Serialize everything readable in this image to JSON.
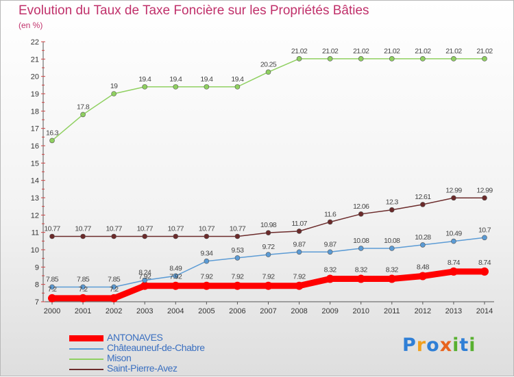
{
  "title": "Evolution du Taux de Taxe Foncière sur les Propriétés Bâties",
  "unit_label": "(en %)",
  "logo": {
    "text": "Proxiti",
    "colors": [
      "#2f7fd6",
      "#f0a020",
      "#2f7fd6",
      "#e8641e",
      "#58b030",
      "#2f7fd6",
      "#58b030"
    ]
  },
  "chart_data": {
    "type": "line",
    "x": [
      2000,
      2001,
      2002,
      2003,
      2004,
      2005,
      2006,
      2007,
      2008,
      2009,
      2010,
      2011,
      2012,
      2013,
      2014
    ],
    "ylim": [
      7,
      22
    ],
    "yticks": [
      7,
      8,
      9,
      10,
      11,
      12,
      13,
      14,
      15,
      16,
      17,
      18,
      19,
      20,
      21,
      22
    ],
    "grid": false,
    "legend_position": "bottom-left",
    "series": [
      {
        "name": "ANTONAVES",
        "color": "#ff0000",
        "thick": true,
        "values": [
          7.2,
          7.2,
          7.2,
          7.92,
          7.92,
          7.92,
          7.92,
          7.92,
          7.92,
          8.32,
          8.32,
          8.32,
          8.48,
          8.74,
          8.74
        ],
        "labels": [
          "7.2",
          "7.2",
          "7.2",
          "7.92",
          "7.92",
          "7.92",
          "7.92",
          "7.92",
          "7.92",
          "8.32",
          "8.32",
          "8.32",
          "8.48",
          "8.74",
          "8.74"
        ]
      },
      {
        "name": "Châteauneuf-de-Chabre",
        "color": "#5b9bd5",
        "thick": false,
        "values": [
          7.85,
          7.85,
          7.85,
          8.24,
          8.49,
          9.34,
          9.53,
          9.72,
          9.87,
          9.87,
          10.08,
          10.08,
          10.28,
          10.49,
          10.7
        ],
        "labels": [
          "7.85",
          "7.85",
          "7.85",
          "8.24",
          "8.49",
          "9.34",
          "9.53",
          "9.72",
          "9.87",
          "9.87",
          "10.08",
          "10.08",
          "10.28",
          "10.49",
          "10.7"
        ]
      },
      {
        "name": "Mison",
        "color": "#8fd060",
        "thick": false,
        "values": [
          16.3,
          17.8,
          19,
          19.4,
          19.4,
          19.4,
          19.4,
          20.25,
          21.02,
          21.02,
          21.02,
          21.02,
          21.02,
          21.02,
          21.02
        ],
        "labels": [
          "16.3",
          "17.8",
          "19",
          "19.4",
          "19.4",
          "19.4",
          "19.4",
          "20.25",
          "21.02",
          "21.02",
          "21.02",
          "21.02",
          "21.02",
          "21.02",
          "21.02"
        ]
      },
      {
        "name": "Saint-Pierre-Avez",
        "color": "#6b2a2a",
        "thick": false,
        "values": [
          10.77,
          10.77,
          10.77,
          10.77,
          10.77,
          10.77,
          10.77,
          10.98,
          11.07,
          11.6,
          12.06,
          12.3,
          12.61,
          12.99,
          12.99
        ],
        "labels": [
          "10.77",
          "10.77",
          "10.77",
          "10.77",
          "10.77",
          "10.77",
          "10.77",
          "10.98",
          "11.07",
          "11.6",
          "12.06",
          "12.3",
          "12.61",
          "12.99",
          "12.99"
        ]
      }
    ]
  }
}
